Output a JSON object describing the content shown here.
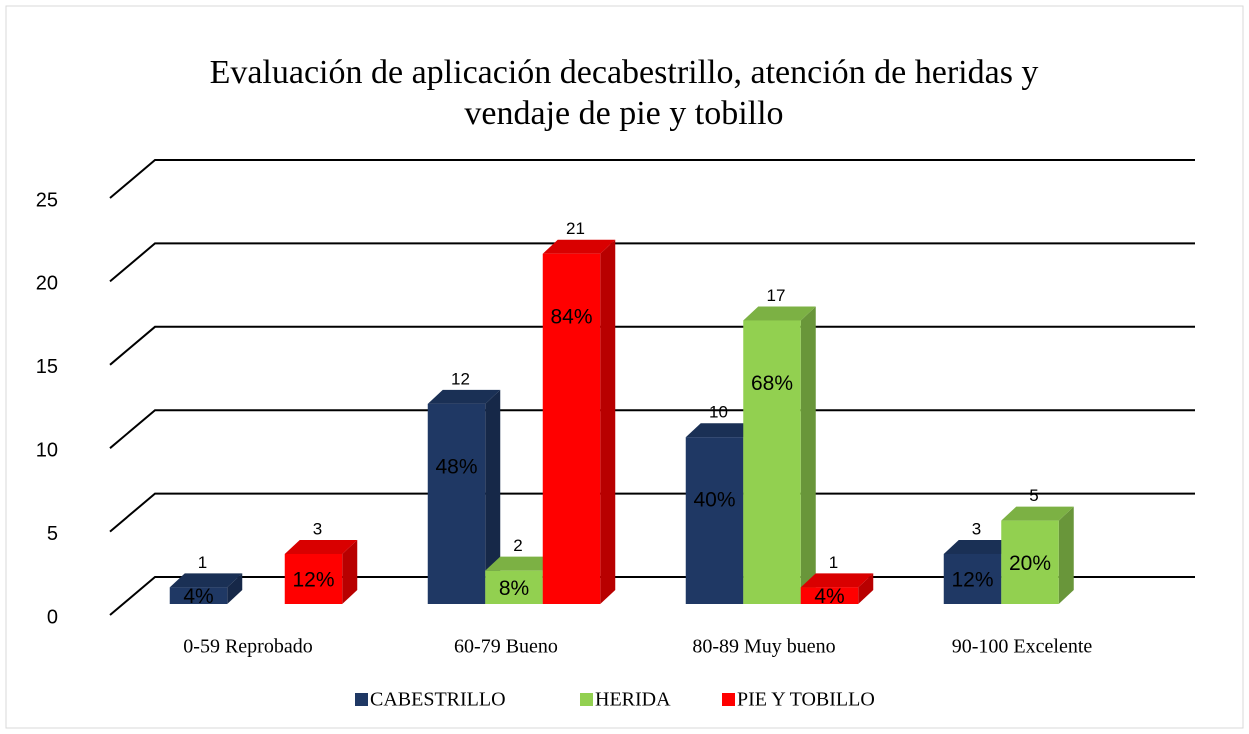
{
  "chart_data": {
    "type": "bar3d",
    "title": [
      "Evaluación de aplicación decabestrillo, atención de heridas y",
      "vendaje de pie y tobillo"
    ],
    "categories": [
      "0-59 Reprobado",
      "60-79 Bueno",
      "80-89 Muy bueno",
      "90-100 Excelente"
    ],
    "series": [
      {
        "name": "CABESTRILLO",
        "color": "#1f3864",
        "values": [
          1,
          12,
          10,
          3
        ],
        "percent": [
          4,
          48,
          40,
          12
        ],
        "percent_labels": [
          "4%",
          "48%",
          "40%",
          "12%"
        ]
      },
      {
        "name": "HERIDA",
        "color": "#92d050",
        "values": [
          null,
          2,
          17,
          5
        ],
        "percent": [
          null,
          8,
          68,
          20
        ],
        "percent_labels": [
          null,
          "8%",
          "68%",
          "20%"
        ]
      },
      {
        "name": "PIE Y TOBILLO",
        "color": "#ff0000",
        "values": [
          3,
          21,
          1,
          null
        ],
        "percent": [
          12,
          84,
          4,
          null
        ],
        "percent_labels": [
          "12%",
          "84%",
          "4%",
          null
        ]
      }
    ],
    "ylim": [
      0,
      25
    ],
    "yticks": [
      0,
      5,
      10,
      15,
      20,
      25
    ],
    "grid": true,
    "legend": "bottom"
  }
}
